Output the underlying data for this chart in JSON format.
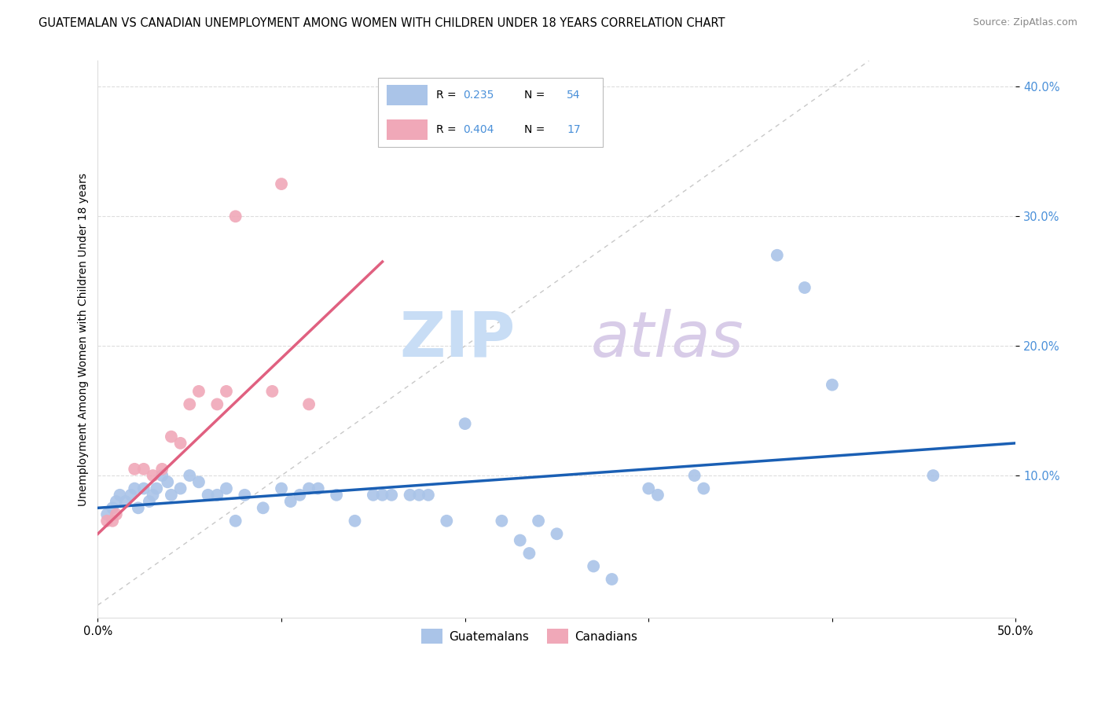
{
  "title": "GUATEMALAN VS CANADIAN UNEMPLOYMENT AMONG WOMEN WITH CHILDREN UNDER 18 YEARS CORRELATION CHART",
  "source": "Source: ZipAtlas.com",
  "ylabel": "Unemployment Among Women with Children Under 18 years",
  "xlim": [
    0.0,
    0.5
  ],
  "ylim": [
    -0.01,
    0.42
  ],
  "diagonal_line": {
    "x": [
      0.0,
      0.42
    ],
    "y": [
      0.0,
      0.42
    ],
    "color": "#c8c8c8",
    "linestyle": "--"
  },
  "blue_scatter": [
    [
      0.005,
      0.07
    ],
    [
      0.008,
      0.075
    ],
    [
      0.01,
      0.08
    ],
    [
      0.012,
      0.085
    ],
    [
      0.015,
      0.08
    ],
    [
      0.018,
      0.085
    ],
    [
      0.02,
      0.09
    ],
    [
      0.022,
      0.075
    ],
    [
      0.025,
      0.09
    ],
    [
      0.028,
      0.08
    ],
    [
      0.03,
      0.085
    ],
    [
      0.032,
      0.09
    ],
    [
      0.035,
      0.1
    ],
    [
      0.038,
      0.095
    ],
    [
      0.04,
      0.085
    ],
    [
      0.045,
      0.09
    ],
    [
      0.05,
      0.1
    ],
    [
      0.055,
      0.095
    ],
    [
      0.06,
      0.085
    ],
    [
      0.065,
      0.085
    ],
    [
      0.07,
      0.09
    ],
    [
      0.075,
      0.065
    ],
    [
      0.08,
      0.085
    ],
    [
      0.09,
      0.075
    ],
    [
      0.1,
      0.09
    ],
    [
      0.105,
      0.08
    ],
    [
      0.11,
      0.085
    ],
    [
      0.115,
      0.09
    ],
    [
      0.12,
      0.09
    ],
    [
      0.13,
      0.085
    ],
    [
      0.14,
      0.065
    ],
    [
      0.15,
      0.085
    ],
    [
      0.155,
      0.085
    ],
    [
      0.16,
      0.085
    ],
    [
      0.17,
      0.085
    ],
    [
      0.175,
      0.085
    ],
    [
      0.18,
      0.085
    ],
    [
      0.19,
      0.065
    ],
    [
      0.2,
      0.14
    ],
    [
      0.22,
      0.065
    ],
    [
      0.23,
      0.05
    ],
    [
      0.235,
      0.04
    ],
    [
      0.24,
      0.065
    ],
    [
      0.25,
      0.055
    ],
    [
      0.27,
      0.03
    ],
    [
      0.28,
      0.02
    ],
    [
      0.3,
      0.09
    ],
    [
      0.305,
      0.085
    ],
    [
      0.325,
      0.1
    ],
    [
      0.33,
      0.09
    ],
    [
      0.37,
      0.27
    ],
    [
      0.385,
      0.245
    ],
    [
      0.4,
      0.17
    ],
    [
      0.455,
      0.1
    ]
  ],
  "pink_scatter": [
    [
      0.005,
      0.065
    ],
    [
      0.008,
      0.065
    ],
    [
      0.01,
      0.07
    ],
    [
      0.02,
      0.105
    ],
    [
      0.025,
      0.105
    ],
    [
      0.03,
      0.1
    ],
    [
      0.035,
      0.105
    ],
    [
      0.04,
      0.13
    ],
    [
      0.045,
      0.125
    ],
    [
      0.05,
      0.155
    ],
    [
      0.055,
      0.165
    ],
    [
      0.065,
      0.155
    ],
    [
      0.07,
      0.165
    ],
    [
      0.095,
      0.165
    ],
    [
      0.115,
      0.155
    ],
    [
      0.075,
      0.3
    ],
    [
      0.1,
      0.325
    ]
  ],
  "blue_line": {
    "x0": 0.0,
    "x1": 0.5,
    "y0": 0.075,
    "y1": 0.125
  },
  "pink_line": {
    "x0": 0.0,
    "x1": 0.155,
    "y0": 0.055,
    "y1": 0.265
  },
  "blue_line_color": "#1a5fb4",
  "pink_line_color": "#e06080",
  "scatter_blue_color": "#aac4e8",
  "scatter_pink_color": "#f0a8b8",
  "background_color": "#ffffff",
  "tick_label_color_right": "#4a90d9",
  "watermark_zip_color": "#c8ddf5",
  "watermark_atlas_color": "#d8cce8"
}
